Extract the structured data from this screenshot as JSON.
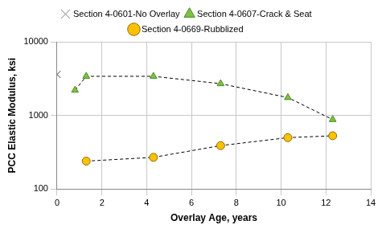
{
  "chart_data": {
    "type": "line",
    "x_label": "Overlay Age, years",
    "y_label": "PCC Elastic Modulus, ksi",
    "series": [
      {
        "name": "Section 4-0601-No Overlay",
        "color": "#808080",
        "marker": "x",
        "line_style": "dashed",
        "x": [
          0
        ],
        "values": [
          3600
        ]
      },
      {
        "name": "Section 4-0607-Crack & Seat",
        "color": "#7dc242",
        "marker": "triangle",
        "line_style": "dashed",
        "x": [
          0.8,
          1.3,
          4.3,
          7.3,
          10.3,
          12.3
        ],
        "values": [
          2200,
          3400,
          3400,
          2700,
          1750,
          880
        ]
      },
      {
        "name": "Section 4-0669-Rubblized",
        "color": "#ffc000",
        "marker": "circle",
        "line_style": "dashed",
        "x": [
          1.3,
          4.3,
          7.3,
          10.3,
          12.3
        ],
        "values": [
          240,
          270,
          390,
          500,
          530
        ]
      }
    ],
    "xlim": [
      0,
      14
    ],
    "xticks": [
      0,
      2,
      4,
      6,
      8,
      10,
      12,
      14
    ],
    "ylim": [
      100,
      10000
    ],
    "yticks": [
      100,
      1000,
      10000
    ],
    "log": "y",
    "grid": true,
    "legend": "top"
  }
}
